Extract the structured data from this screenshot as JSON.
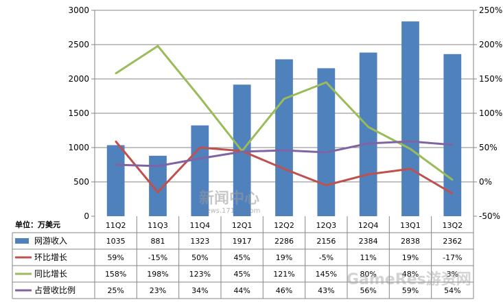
{
  "chart_data": {
    "type": "bar",
    "unit_label": "单位：万美元",
    "categories": [
      "11Q2",
      "11Q3",
      "11Q4",
      "12Q1",
      "12Q2",
      "12Q3",
      "12Q4",
      "13Q1",
      "13Q2"
    ],
    "left_axis": {
      "ylim": [
        0,
        3000
      ],
      "ticks": [
        "0",
        "500",
        "1000",
        "1500",
        "2000",
        "2500",
        "3000"
      ]
    },
    "right_axis": {
      "ylim": [
        -50,
        250
      ],
      "ticks": [
        "-50%",
        "0%",
        "50%",
        "100%",
        "150%",
        "200%",
        "250%"
      ]
    },
    "grid": "horizontal",
    "legend_placement": "data-table",
    "series": [
      {
        "name": "网游收入",
        "kind": "bar",
        "axis": "left",
        "color": "#4f81bd",
        "values": [
          1035,
          881,
          1323,
          1917,
          2286,
          2156,
          2384,
          2838,
          2362
        ],
        "labels": [
          "1035",
          "881",
          "1323",
          "1917",
          "2286",
          "2156",
          "2384",
          "2838",
          "2362"
        ]
      },
      {
        "name": "环比增长",
        "kind": "line",
        "axis": "right",
        "color": "#c0504d",
        "values": [
          59,
          -15,
          50,
          45,
          19,
          -5,
          11,
          19,
          -17
        ],
        "labels": [
          "59%",
          "-15%",
          "50%",
          "45%",
          "19%",
          "-5%",
          "11%",
          "19%",
          "-17%"
        ]
      },
      {
        "name": "同比增长",
        "kind": "line",
        "axis": "right",
        "color": "#9bbb59",
        "values": [
          158,
          198,
          123,
          45,
          121,
          145,
          80,
          48,
          3
        ],
        "labels": [
          "158%",
          "198%",
          "123%",
          "45%",
          "121%",
          "145%",
          "80%",
          "48%",
          "3%"
        ]
      },
      {
        "name": "占营收比例",
        "kind": "line",
        "axis": "right",
        "color": "#8064a2",
        "values": [
          25,
          23,
          34,
          44,
          46,
          43,
          56,
          59,
          54
        ],
        "labels": [
          "25%",
          "23%",
          "34%",
          "44%",
          "46%",
          "43%",
          "56%",
          "59%",
          "54%"
        ]
      }
    ]
  },
  "watermarks": {
    "center_text": "新闻中心",
    "center_url": "news.17173.com",
    "corner_text": "GameRes游资网"
  }
}
